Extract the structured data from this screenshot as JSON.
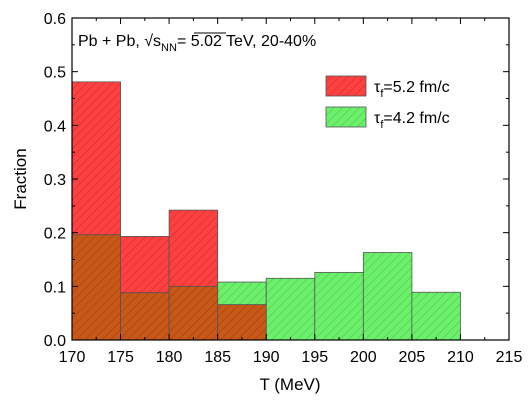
{
  "chart_data": {
    "type": "bar",
    "annotation": {
      "prefix": "Pb + Pb, ",
      "sqrt": "√",
      "s": "s",
      "sub": "NN",
      "suffix": "= 5.02 TeV, 20-40%"
    },
    "xlabel": "T (MeV)",
    "ylabel": "Fraction",
    "xlim": [
      170,
      215
    ],
    "ylim": [
      0,
      0.6
    ],
    "x_ticks": [
      "170",
      "175",
      "180",
      "185",
      "190",
      "195",
      "200",
      "205",
      "210",
      "215"
    ],
    "y_ticks": [
      "0.0",
      "0.1",
      "0.2",
      "0.3",
      "0.4",
      "0.5",
      "0.6"
    ],
    "bin_width": 5,
    "legend_position": "top-right",
    "series": [
      {
        "name": "τf=5.2 fm/c",
        "label_main": "τ",
        "label_sub": "f",
        "label_rest": "=5.2 fm/c",
        "color": "#ff4040",
        "hatch": "#c83030",
        "bins": [
          170,
          175,
          180,
          185
        ],
        "values": [
          0.481,
          0.193,
          0.242,
          0.066
        ]
      },
      {
        "name": "τf=4.2 fm/c",
        "label_main": "τ",
        "label_sub": "f",
        "label_rest": "=4.2 fm/c",
        "color": "#6cf06c",
        "hatch": "#4cc84c",
        "bins": [
          170,
          175,
          180,
          185,
          190,
          195,
          200,
          205
        ],
        "values": [
          0.196,
          0.088,
          0.1,
          0.108,
          0.115,
          0.126,
          0.163,
          0.089
        ]
      }
    ],
    "overlap_color": "#c85818"
  }
}
